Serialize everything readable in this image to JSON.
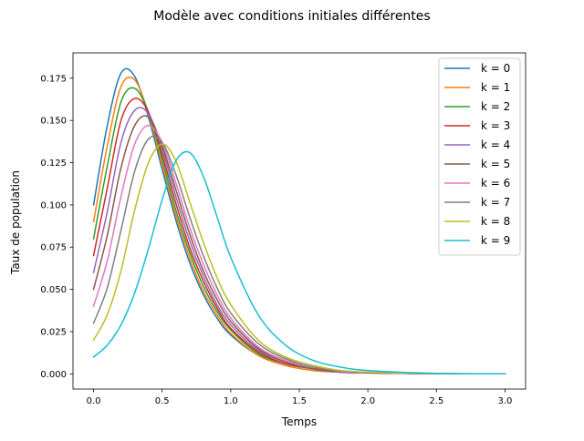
{
  "chart_data": {
    "type": "line",
    "title": "Modèle avec conditions initiales différentes",
    "xlabel": "Temps",
    "ylabel": "Taux de population",
    "xlim": [
      -0.15,
      3.15
    ],
    "ylim": [
      -0.009,
      0.19
    ],
    "xticks": [
      0.0,
      0.5,
      1.0,
      1.5,
      2.0,
      2.5,
      3.0
    ],
    "xtick_labels": [
      "0.0",
      "0.5",
      "1.0",
      "1.5",
      "2.0",
      "2.5",
      "3.0"
    ],
    "yticks": [
      0.0,
      0.025,
      0.05,
      0.075,
      0.1,
      0.125,
      0.15,
      0.175
    ],
    "ytick_labels": [
      "0.000",
      "0.025",
      "0.050",
      "0.075",
      "0.100",
      "0.125",
      "0.150",
      "0.175"
    ],
    "grid": false,
    "legend_position": "top-right",
    "x": [
      0.0,
      0.1,
      0.2,
      0.3,
      0.4,
      0.5,
      0.6,
      0.7,
      0.8,
      0.9,
      1.0,
      1.2,
      1.4,
      1.6,
      1.8,
      2.0,
      2.5,
      3.0
    ],
    "series": [
      {
        "name": "k = 0",
        "color": "#1f77b4",
        "values": [
          0.1,
          0.147,
          0.178,
          0.176,
          0.152,
          0.121,
          0.091,
          0.066,
          0.047,
          0.033,
          0.023,
          0.011,
          0.005,
          0.002,
          0.001,
          0.0005,
          0.0001,
          0.0
        ]
      },
      {
        "name": "k = 1",
        "color": "#ff7f0e",
        "values": [
          0.09,
          0.135,
          0.17,
          0.174,
          0.154,
          0.124,
          0.094,
          0.069,
          0.049,
          0.035,
          0.024,
          0.011,
          0.005,
          0.002,
          0.001,
          0.0005,
          0.0001,
          0.0
        ]
      },
      {
        "name": "k = 2",
        "color": "#2ca02c",
        "values": [
          0.08,
          0.123,
          0.161,
          0.169,
          0.155,
          0.127,
          0.097,
          0.072,
          0.052,
          0.037,
          0.026,
          0.012,
          0.006,
          0.003,
          0.001,
          0.0006,
          0.0001,
          0.0
        ]
      },
      {
        "name": "k = 3",
        "color": "#d62728",
        "values": [
          0.07,
          0.11,
          0.15,
          0.163,
          0.155,
          0.13,
          0.101,
          0.075,
          0.055,
          0.039,
          0.027,
          0.013,
          0.006,
          0.003,
          0.001,
          0.0006,
          0.0001,
          0.0
        ]
      },
      {
        "name": "k = 4",
        "color": "#9467bd",
        "values": [
          0.06,
          0.096,
          0.137,
          0.156,
          0.154,
          0.133,
          0.105,
          0.079,
          0.058,
          0.041,
          0.029,
          0.014,
          0.007,
          0.003,
          0.001,
          0.0007,
          0.0001,
          0.0
        ]
      },
      {
        "name": "k = 5",
        "color": "#8c564b",
        "values": [
          0.05,
          0.082,
          0.122,
          0.147,
          0.152,
          0.135,
          0.109,
          0.083,
          0.061,
          0.044,
          0.031,
          0.015,
          0.007,
          0.003,
          0.0015,
          0.0007,
          0.0001,
          0.0
        ]
      },
      {
        "name": "k = 6",
        "color": "#e377c2",
        "values": [
          0.04,
          0.067,
          0.105,
          0.136,
          0.147,
          0.137,
          0.113,
          0.087,
          0.065,
          0.047,
          0.033,
          0.016,
          0.008,
          0.004,
          0.0017,
          0.0008,
          0.0001,
          0.0
        ]
      },
      {
        "name": "k = 7",
        "color": "#7f7f7f",
        "values": [
          0.03,
          0.051,
          0.085,
          0.12,
          0.139,
          0.137,
          0.118,
          0.093,
          0.07,
          0.051,
          0.036,
          0.018,
          0.009,
          0.004,
          0.002,
          0.0009,
          0.0001,
          0.0
        ]
      },
      {
        "name": "k = 8",
        "color": "#bcbd22",
        "values": [
          0.02,
          0.035,
          0.061,
          0.097,
          0.125,
          0.136,
          0.126,
          0.102,
          0.078,
          0.057,
          0.041,
          0.02,
          0.01,
          0.005,
          0.002,
          0.001,
          0.0002,
          0.0
        ]
      },
      {
        "name": "k = 9",
        "color": "#17becf",
        "values": [
          0.01,
          0.017,
          0.029,
          0.048,
          0.074,
          0.103,
          0.126,
          0.131,
          0.117,
          0.093,
          0.069,
          0.035,
          0.017,
          0.008,
          0.004,
          0.002,
          0.0003,
          0.0
        ]
      }
    ]
  }
}
